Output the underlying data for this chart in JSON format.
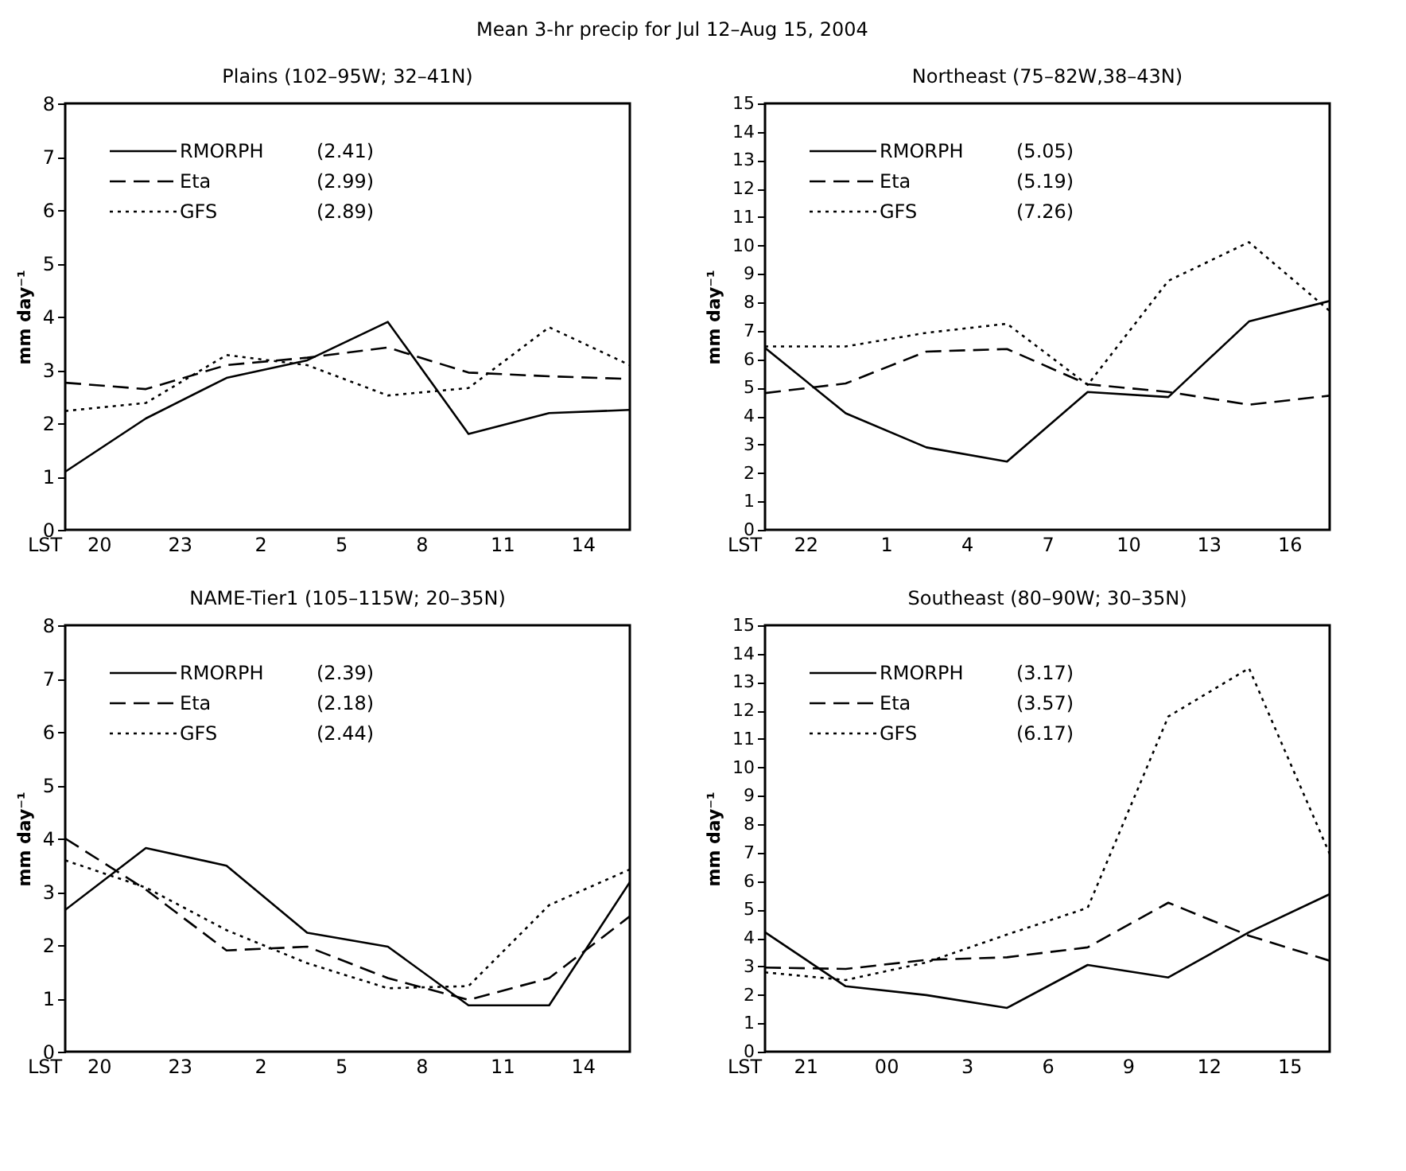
{
  "chart_data": [
    {
      "type": "line",
      "title": "Plains (102–95W; 32–41N)",
      "xlabel": "LST",
      "ylabel": "mm day⁻¹",
      "legend": "top left",
      "marker": "none",
      "grid": false,
      "annotations": [
        "(2.41)",
        "(2.99)",
        "(2.89)",
        "Mean 3-hr precip for Jul 12–Aug 15, 2004"
      ],
      "x": [
        "2004-07-12T18:45",
        "2004-07-12T21:45",
        "2004-07-13T00:45",
        "2004-07-13T03:45",
        "2004-07-13T06:45",
        "2004-07-13T09:45",
        "2004-07-13T12:45",
        "2004-07-13T15:45"
      ],
      "xlim": [
        "2004-07-12T18:45",
        "2004-07-13T15:45"
      ],
      "xticks": [
        {
          "value": "2004-07-12T20:00",
          "label": "20"
        },
        {
          "value": "2004-07-12T23:00",
          "label": "23"
        },
        {
          "value": "2004-07-13T02:00",
          "label": "2"
        },
        {
          "value": "2004-07-13T05:00",
          "label": "5"
        },
        {
          "value": "2004-07-13T08:00",
          "label": "8"
        },
        {
          "value": "2004-07-13T11:00",
          "label": "11"
        },
        {
          "value": "2004-07-13T14:00",
          "label": "14"
        }
      ],
      "ylim": [
        0,
        8
      ],
      "yticks": [
        0,
        1,
        2,
        3,
        4,
        5,
        6,
        7,
        8
      ],
      "series": [
        {
          "name": "RMORPH",
          "color": "#000000",
          "line_style": "solid",
          "values": [
            1.09,
            2.09,
            2.85,
            3.18,
            3.9,
            1.8,
            2.19,
            2.25
          ]
        },
        {
          "name": "Eta",
          "color": "#000000",
          "line_style": "dashed",
          "values": [
            2.76,
            2.64,
            3.09,
            3.23,
            3.42,
            2.95,
            2.88,
            2.83
          ]
        },
        {
          "name": "GFS",
          "color": "#000000",
          "line_style": "dotted",
          "values": [
            2.23,
            2.38,
            3.28,
            3.09,
            2.52,
            2.66,
            3.8,
            3.09
          ]
        }
      ]
    },
    {
      "type": "line",
      "title": "Northeast (75–82W,38–43N)",
      "xlabel": "LST",
      "ylabel": "mm day⁻¹",
      "legend": "top left",
      "marker": "none",
      "grid": false,
      "annotations": [
        "(5.05)",
        "(5.19)",
        "(7.26)"
      ],
      "x": [
        "2004-07-12T20:30",
        "2004-07-12T23:30",
        "2004-07-13T02:30",
        "2004-07-13T05:30",
        "2004-07-13T08:30",
        "2004-07-13T11:30",
        "2004-07-13T14:30",
        "2004-07-13T17:30"
      ],
      "xlim": [
        "2004-07-12T20:30",
        "2004-07-13T17:30"
      ],
      "xticks": [
        {
          "value": "2004-07-12T22:00",
          "label": "22"
        },
        {
          "value": "2004-07-13T01:00",
          "label": "1"
        },
        {
          "value": "2004-07-13T04:00",
          "label": "4"
        },
        {
          "value": "2004-07-13T07:00",
          "label": "7"
        },
        {
          "value": "2004-07-13T10:00",
          "label": "10"
        },
        {
          "value": "2004-07-13T13:00",
          "label": "13"
        },
        {
          "value": "2004-07-13T16:00",
          "label": "16"
        }
      ],
      "ylim": [
        0,
        15
      ],
      "yticks": [
        0,
        1,
        2,
        3,
        4,
        5,
        6,
        7,
        8,
        9,
        10,
        11,
        12,
        13,
        14,
        15
      ],
      "series": [
        {
          "name": "RMORPH",
          "color": "#000000",
          "line_style": "solid",
          "values": [
            6.4,
            4.1,
            2.9,
            2.4,
            4.85,
            4.67,
            7.33,
            8.05
          ]
        },
        {
          "name": "Eta",
          "color": "#000000",
          "line_style": "dashed",
          "values": [
            4.81,
            5.15,
            6.27,
            6.36,
            5.12,
            4.85,
            4.4,
            4.72
          ]
        },
        {
          "name": "GFS",
          "color": "#000000",
          "line_style": "dotted",
          "values": [
            6.45,
            6.45,
            6.93,
            7.25,
            5.1,
            8.76,
            10.12,
            7.7
          ]
        }
      ]
    },
    {
      "type": "line",
      "title": "NAME-Tier1 (105–115W; 20–35N)",
      "xlabel": "LST",
      "ylabel": "mm day⁻¹",
      "legend": "top left",
      "marker": "none",
      "grid": false,
      "annotations": [
        "(2.39)",
        "(2.18)",
        "(2.44)"
      ],
      "x": [
        "2004-07-12T18:45",
        "2004-07-12T21:45",
        "2004-07-13T00:45",
        "2004-07-13T03:45",
        "2004-07-13T06:45",
        "2004-07-13T09:45",
        "2004-07-13T12:45",
        "2004-07-13T15:45"
      ],
      "xlim": [
        "2004-07-12T18:45",
        "2004-07-13T15:45"
      ],
      "xticks": [
        {
          "value": "2004-07-12T20:00",
          "label": "20"
        },
        {
          "value": "2004-07-12T23:00",
          "label": "23"
        },
        {
          "value": "2004-07-13T02:00",
          "label": "2"
        },
        {
          "value": "2004-07-13T05:00",
          "label": "5"
        },
        {
          "value": "2004-07-13T08:00",
          "label": "8"
        },
        {
          "value": "2004-07-13T11:00",
          "label": "11"
        },
        {
          "value": "2004-07-13T14:00",
          "label": "14"
        }
      ],
      "ylim": [
        0,
        8
      ],
      "yticks": [
        0,
        1,
        2,
        3,
        4,
        5,
        6,
        7,
        8
      ],
      "series": [
        {
          "name": "RMORPH",
          "color": "#000000",
          "line_style": "solid",
          "values": [
            2.66,
            3.82,
            3.49,
            2.23,
            1.97,
            0.87,
            0.87,
            3.18
          ]
        },
        {
          "name": "Eta",
          "color": "#000000",
          "line_style": "dashed",
          "values": [
            4.0,
            3.04,
            1.9,
            1.97,
            1.38,
            0.97,
            1.38,
            2.54
          ]
        },
        {
          "name": "GFS",
          "color": "#000000",
          "line_style": "dotted",
          "values": [
            3.59,
            3.08,
            2.28,
            1.66,
            1.19,
            1.23,
            2.75,
            3.42
          ]
        }
      ]
    },
    {
      "type": "line",
      "title": "Southeast (80–90W; 30–35N)",
      "xlabel": "LST",
      "ylabel": "mm day⁻¹",
      "legend": "top left",
      "marker": "none",
      "grid": false,
      "annotations": [
        "(3.17)",
        "(3.57)",
        "(6.17)"
      ],
      "x": [
        "2004-07-12T19:30",
        "2004-07-12T22:30",
        "2004-07-13T01:30",
        "2004-07-13T04:30",
        "2004-07-13T07:30",
        "2004-07-13T10:30",
        "2004-07-13T13:30",
        "2004-07-13T16:30"
      ],
      "xlim": [
        "2004-07-12T19:30",
        "2004-07-13T16:30"
      ],
      "xticks": [
        {
          "value": "2004-07-12T21:00",
          "label": "21"
        },
        {
          "value": "2004-07-13T00:00",
          "label": "00"
        },
        {
          "value": "2004-07-13T03:00",
          "label": "3"
        },
        {
          "value": "2004-07-13T06:00",
          "label": "6"
        },
        {
          "value": "2004-07-13T09:00",
          "label": "9"
        },
        {
          "value": "2004-07-13T12:00",
          "label": "12"
        },
        {
          "value": "2004-07-13T15:00",
          "label": "15"
        }
      ],
      "ylim": [
        0,
        15
      ],
      "yticks": [
        0,
        1,
        2,
        3,
        4,
        5,
        6,
        7,
        8,
        9,
        10,
        11,
        12,
        13,
        14,
        15
      ],
      "series": [
        {
          "name": "RMORPH",
          "color": "#000000",
          "line_style": "solid",
          "values": [
            4.2,
            2.3,
            1.99,
            1.54,
            3.05,
            2.61,
            4.2,
            5.54
          ]
        },
        {
          "name": "Eta",
          "color": "#000000",
          "line_style": "dashed",
          "values": [
            2.96,
            2.91,
            3.23,
            3.32,
            3.67,
            5.24,
            4.08,
            3.2
          ]
        },
        {
          "name": "GFS",
          "color": "#000000",
          "line_style": "dotted",
          "values": [
            2.79,
            2.52,
            3.14,
            4.12,
            5.06,
            11.79,
            13.49,
            6.96
          ]
        }
      ]
    }
  ]
}
